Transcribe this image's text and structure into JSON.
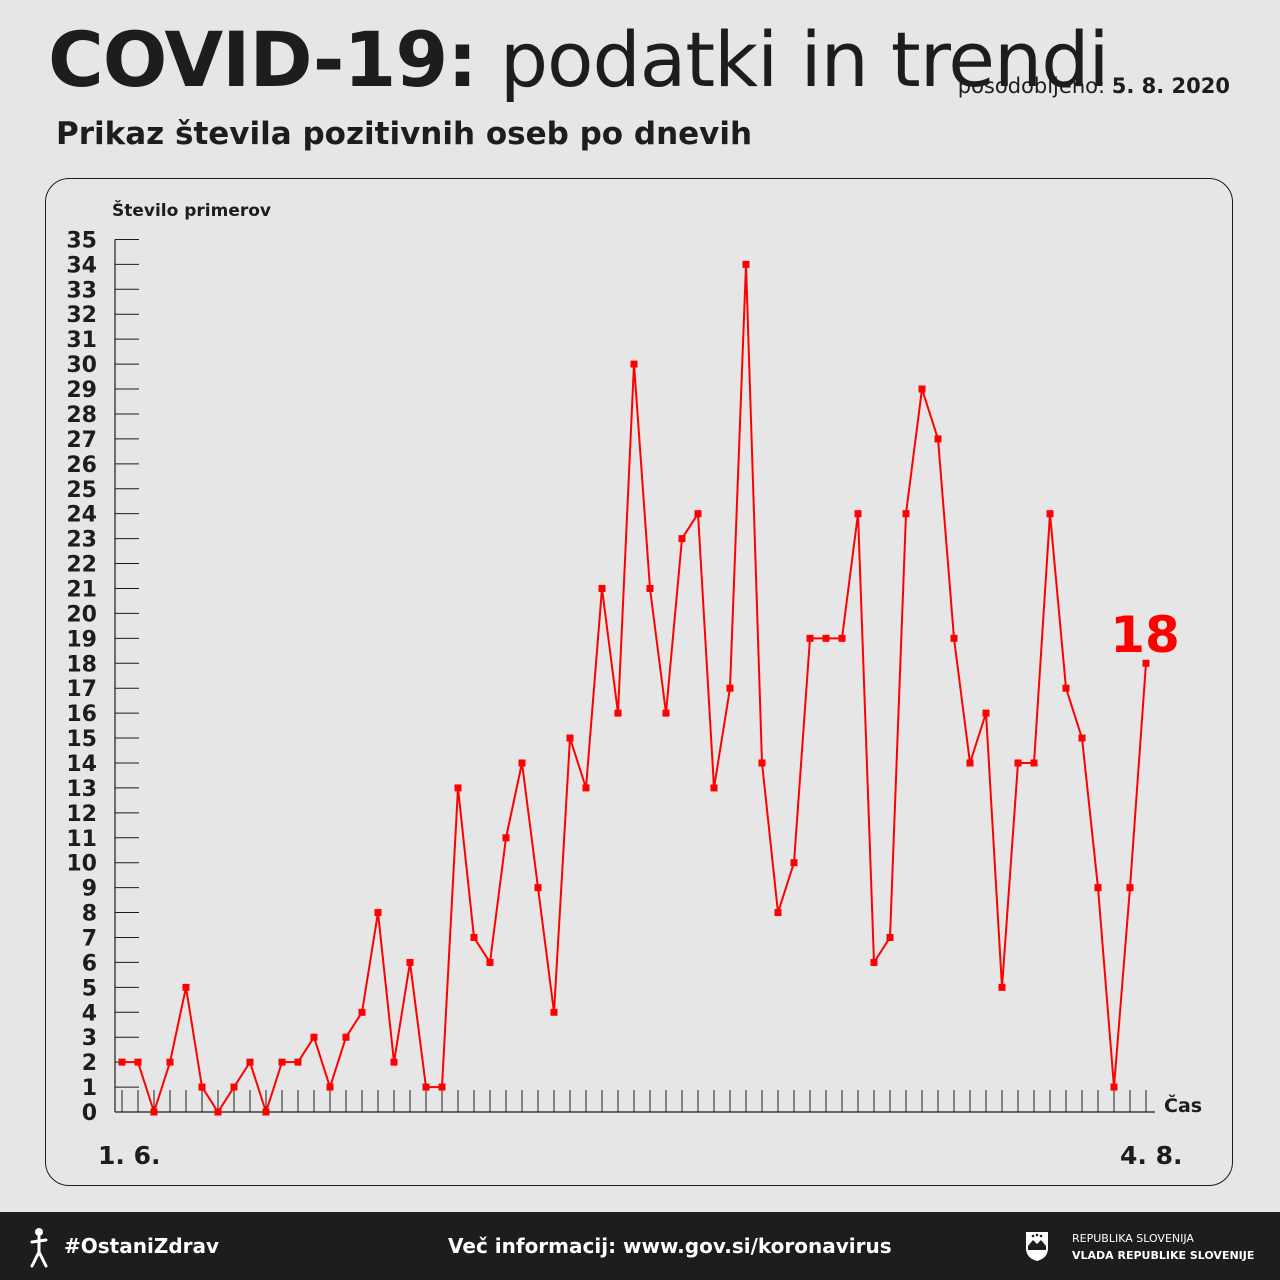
{
  "header": {
    "title_bold": "COVID-19:",
    "title_light": "podatki in trendi",
    "updated_label": "posodobljeno:",
    "updated_date": "5. 8. 2020",
    "subtitle": "Prikaz števila pozitivnih oseb po dnevih"
  },
  "chart_data": {
    "type": "line",
    "ylabel": "Število primerov",
    "xlabel": "Čas",
    "x_start_label": "1. 6.",
    "x_end_label": "4. 8.",
    "ylim": [
      0,
      35
    ],
    "series_color": "#ff0000",
    "last_value_label": "18",
    "values": [
      2,
      2,
      0,
      2,
      5,
      1,
      0,
      1,
      2,
      0,
      2,
      2,
      3,
      1,
      3,
      4,
      8,
      2,
      6,
      1,
      1,
      13,
      7,
      6,
      11,
      14,
      9,
      4,
      15,
      13,
      21,
      16,
      30,
      21,
      16,
      23,
      24,
      13,
      17,
      34,
      14,
      8,
      10,
      19,
      19,
      19,
      24,
      6,
      7,
      24,
      29,
      27,
      19,
      14,
      16,
      5,
      14,
      14,
      24,
      17,
      15,
      9,
      1,
      9,
      18
    ]
  },
  "footer": {
    "hashtag": "#OstaniZdrav",
    "more_info": "Več informacij: www.gov.si/koronavirus",
    "gov_line1": "REPUBLIKA SLOVENIJA",
    "gov_line2": "VLADA REPUBLIKE SLOVENIJE"
  }
}
